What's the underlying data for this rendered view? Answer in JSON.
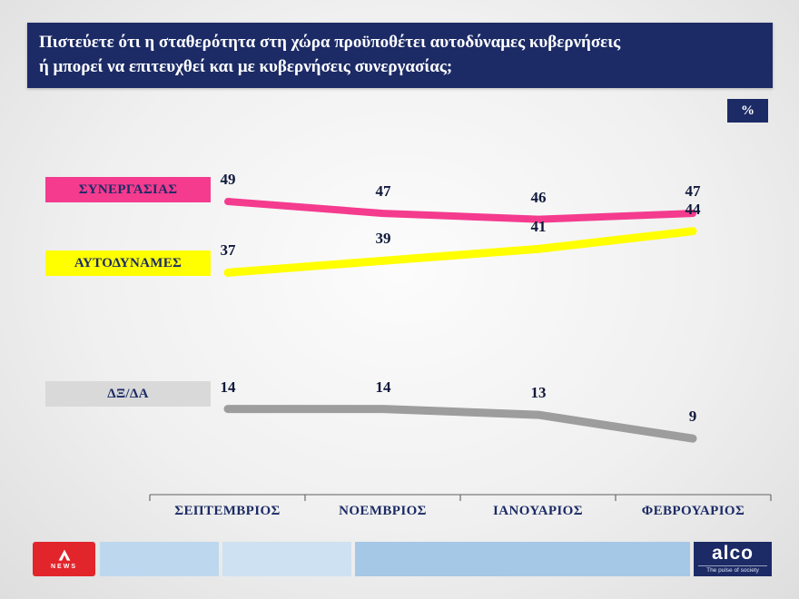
{
  "header": {
    "title_lines": [
      "Πιστεύετε ότι η σταθερότητα στη χώρα προϋποθέτει αυτοδύναμες κυβερνήσεις",
      "ή μπορεί να επιτευχθεί και με κυβερνήσεις συνεργασίας;"
    ],
    "percent_badge": "%"
  },
  "chart_data": {
    "type": "line",
    "title": "Πιστεύετε ότι η σταθερότητα στη χώρα προϋποθέτει αυτοδύναμες κυβερνήσεις ή μπορεί να επιτευχθεί και με κυβερνήσεις συνεργασίας;",
    "unit": "%",
    "categories": [
      "ΣΕΠΤΕΜΒΡΙΟΣ",
      "ΝΟΕΜΒΡΙΟΣ",
      "ΙΑΝΟΥΑΡΙΟΣ",
      "ΦΕΒΡΟΥΑΡΙΟΣ"
    ],
    "series": [
      {
        "name": "ΣΥΝΕΡΓΑΣΙΑΣ",
        "values": [
          49,
          47,
          46,
          47
        ],
        "color": "#f43b8e",
        "chip_color": "#f43b8e"
      },
      {
        "name": "ΑΥΤΟΔΥΝΑΜΕΣ",
        "values": [
          37,
          39,
          41,
          44
        ],
        "color": "#ffff00",
        "chip_color": "#ffff00"
      },
      {
        "name": "ΔΞ/ΔΑ",
        "values": [
          14,
          14,
          13,
          9
        ],
        "color": "#9d9d9d",
        "chip_color": "#d9d9d9"
      }
    ],
    "ylim": [
      0,
      60
    ],
    "grid": false,
    "legend_position": "left",
    "data_labels": true
  },
  "colors": {
    "navy": "#1c2b66",
    "pink": "#f43b8e",
    "yellow": "#ffff00",
    "gray_line": "#9d9d9d",
    "gray_chip": "#d9d9d9",
    "alpha_red": "#e2252b",
    "value_text": "#10193c"
  },
  "footer": {
    "alpha_news_label": "NEWS",
    "alco_word": "alco",
    "alco_tagline": "The pulse of society"
  }
}
